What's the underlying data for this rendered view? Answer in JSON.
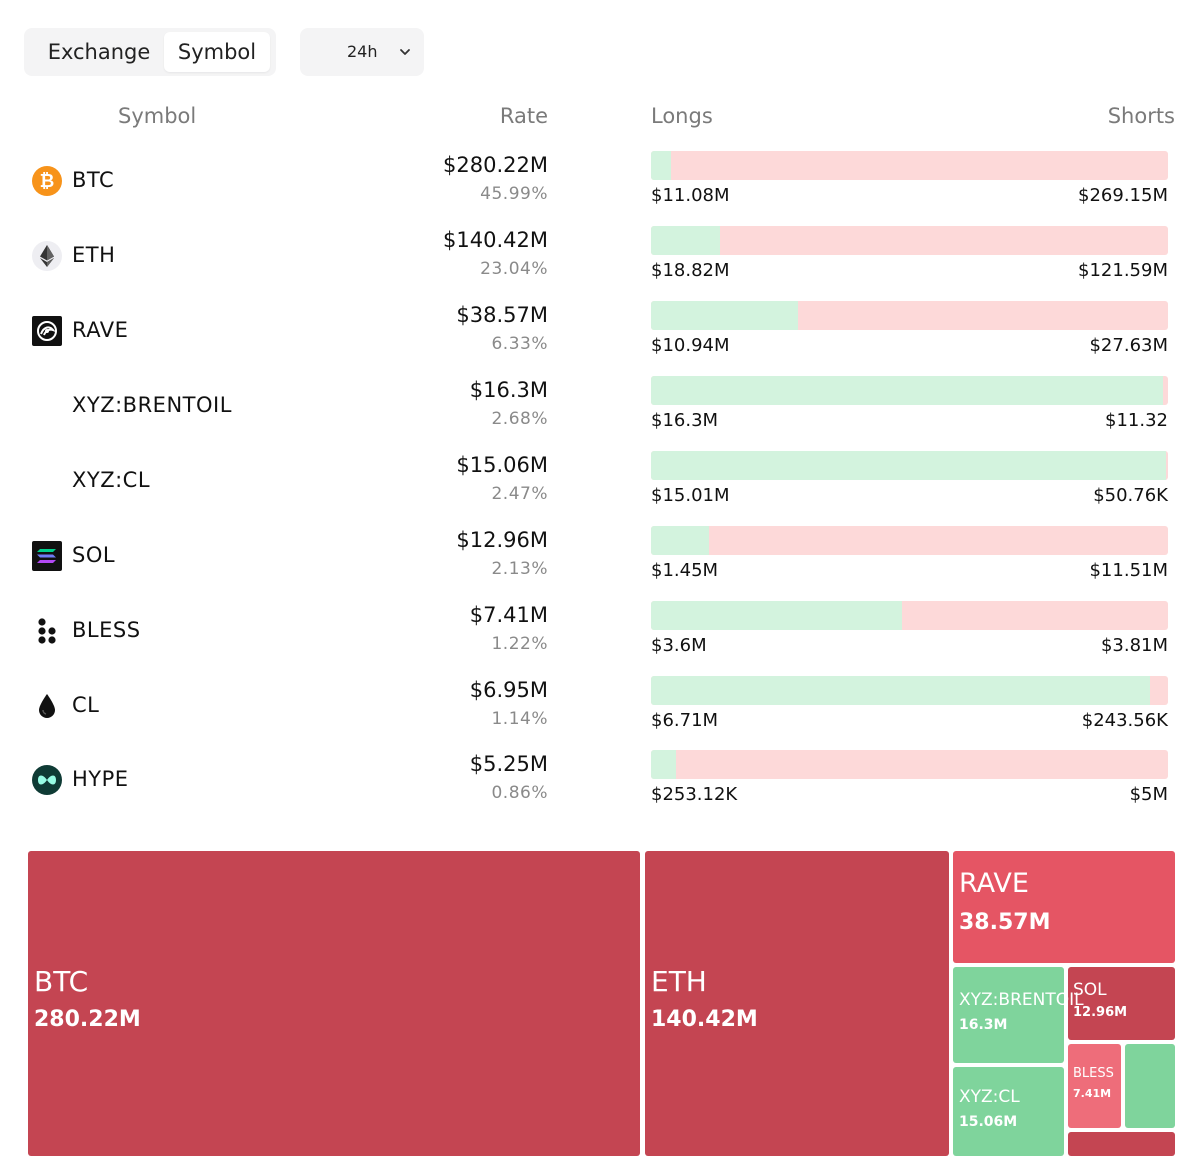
{
  "tabs": [
    {
      "label": "Exchange",
      "active": false
    },
    {
      "label": "Symbol",
      "active": true
    }
  ],
  "period": {
    "value": "24h"
  },
  "headers": {
    "symbol": "Symbol",
    "rate": "Rate",
    "longs": "Longs",
    "shorts": "Shorts"
  },
  "rows": [
    {
      "symbol": "BTC",
      "icon": "bitcoin-icon",
      "amount": "$280.22M",
      "percent": "45.99%",
      "longs": "$11.08M",
      "shorts": "$269.15M",
      "long_fraction": 0.0395
    },
    {
      "symbol": "ETH",
      "icon": "ethereum-icon",
      "amount": "$140.42M",
      "percent": "23.04%",
      "longs": "$18.82M",
      "shorts": "$121.59M",
      "long_fraction": 0.134
    },
    {
      "symbol": "RAVE",
      "icon": "rave-icon",
      "amount": "$38.57M",
      "percent": "6.33%",
      "longs": "$10.94M",
      "shorts": "$27.63M",
      "long_fraction": 0.2836
    },
    {
      "symbol": "XYZ:BRENTOIL",
      "icon": "",
      "amount": "$16.3M",
      "percent": "2.68%",
      "longs": "$16.3M",
      "shorts": "$11.32",
      "long_fraction": 0.99
    },
    {
      "symbol": "XYZ:CL",
      "icon": "",
      "amount": "$15.06M",
      "percent": "2.47%",
      "longs": "$15.01M",
      "shorts": "$50.76K",
      "long_fraction": 0.9966
    },
    {
      "symbol": "SOL",
      "icon": "solana-icon",
      "amount": "$12.96M",
      "percent": "2.13%",
      "longs": "$1.45M",
      "shorts": "$11.51M",
      "long_fraction": 0.1119
    },
    {
      "symbol": "BLESS",
      "icon": "bless-icon",
      "amount": "$7.41M",
      "percent": "1.22%",
      "longs": "$3.6M",
      "shorts": "$3.81M",
      "long_fraction": 0.4858
    },
    {
      "symbol": "CL",
      "icon": "oil-drop-icon",
      "amount": "$6.95M",
      "percent": "1.14%",
      "longs": "$6.71M",
      "shorts": "$243.56K",
      "long_fraction": 0.9649
    },
    {
      "symbol": "HYPE",
      "icon": "hyperliquid-icon",
      "amount": "$5.25M",
      "percent": "0.86%",
      "longs": "$253.12K",
      "shorts": "$5M",
      "long_fraction": 0.0482
    }
  ],
  "treemap": [
    {
      "name": "BTC",
      "value": "280.22M",
      "side": "short"
    },
    {
      "name": "ETH",
      "value": "140.42M",
      "side": "short"
    },
    {
      "name": "RAVE",
      "value": "38.57M",
      "side": "short"
    },
    {
      "name": "XYZ:BRENTOIL",
      "value": "16.3M",
      "side": "long"
    },
    {
      "name": "SOL",
      "value": "12.96M",
      "side": "short"
    },
    {
      "name": "XYZ:CL",
      "value": "15.06M",
      "side": "long"
    },
    {
      "name": "BLESS",
      "value": "7.41M",
      "side": "short"
    },
    {
      "name": "",
      "value": "",
      "side": "long"
    },
    {
      "name": "",
      "value": "",
      "side": "short"
    }
  ],
  "colors": {
    "long_bar": "#d3f3de",
    "short_bar": "#fdd9d9",
    "treemap_short_dark": "#c44552",
    "treemap_short_light": "#e55564",
    "treemap_bless": "#ee6d7a",
    "treemap_long": "#7fd49c"
  }
}
